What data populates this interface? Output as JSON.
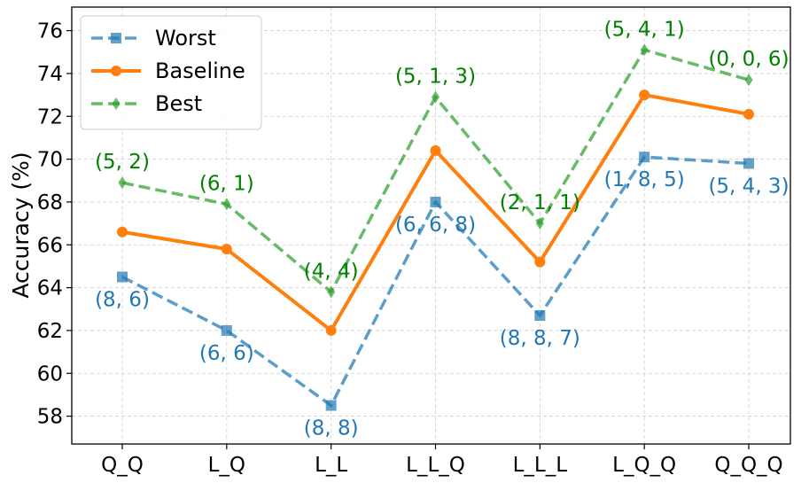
{
  "chart_data": {
    "type": "line",
    "title": "",
    "xlabel": "",
    "ylabel": "Accuracy (%)",
    "categories": [
      "Q_Q",
      "L_Q",
      "L_L",
      "L_L_Q",
      "L_L_L",
      "L_Q_Q",
      "Q_Q_Q"
    ],
    "ylim": [
      56.7,
      77.1
    ],
    "yticks": [
      58,
      60,
      62,
      64,
      66,
      68,
      70,
      72,
      74,
      76
    ],
    "grid": true,
    "legend_position": "top-left",
    "series": [
      {
        "name": "Worst",
        "color": "#1f77b4",
        "line_style": "dashed",
        "marker": "square",
        "values": [
          64.5,
          62.0,
          58.5,
          68.0,
          62.7,
          70.1,
          69.8
        ],
        "annotations": [
          "(8, 6)",
          "(6, 6)",
          "(8, 8)",
          "(6, 6, 8)",
          "(8, 8, 7)",
          "(1, 8, 5)",
          "(5, 4, 3)"
        ]
      },
      {
        "name": "Baseline",
        "color": "#ff7f0e",
        "line_style": "solid",
        "marker": "circle",
        "values": [
          66.6,
          65.8,
          62.0,
          70.4,
          65.2,
          73.0,
          72.1
        ],
        "annotations": []
      },
      {
        "name": "Best",
        "color": "#2ca02c",
        "line_style": "dashed",
        "marker": "diamond",
        "values": [
          68.9,
          67.9,
          63.8,
          72.9,
          67.0,
          75.1,
          73.7
        ],
        "annotations": [
          "(5, 2)",
          "(6, 1)",
          "(4, 4)",
          "(5, 1, 3)",
          "(2, 1, 1)",
          "(5, 4, 1)",
          "(0, 0, 6)"
        ]
      }
    ]
  }
}
